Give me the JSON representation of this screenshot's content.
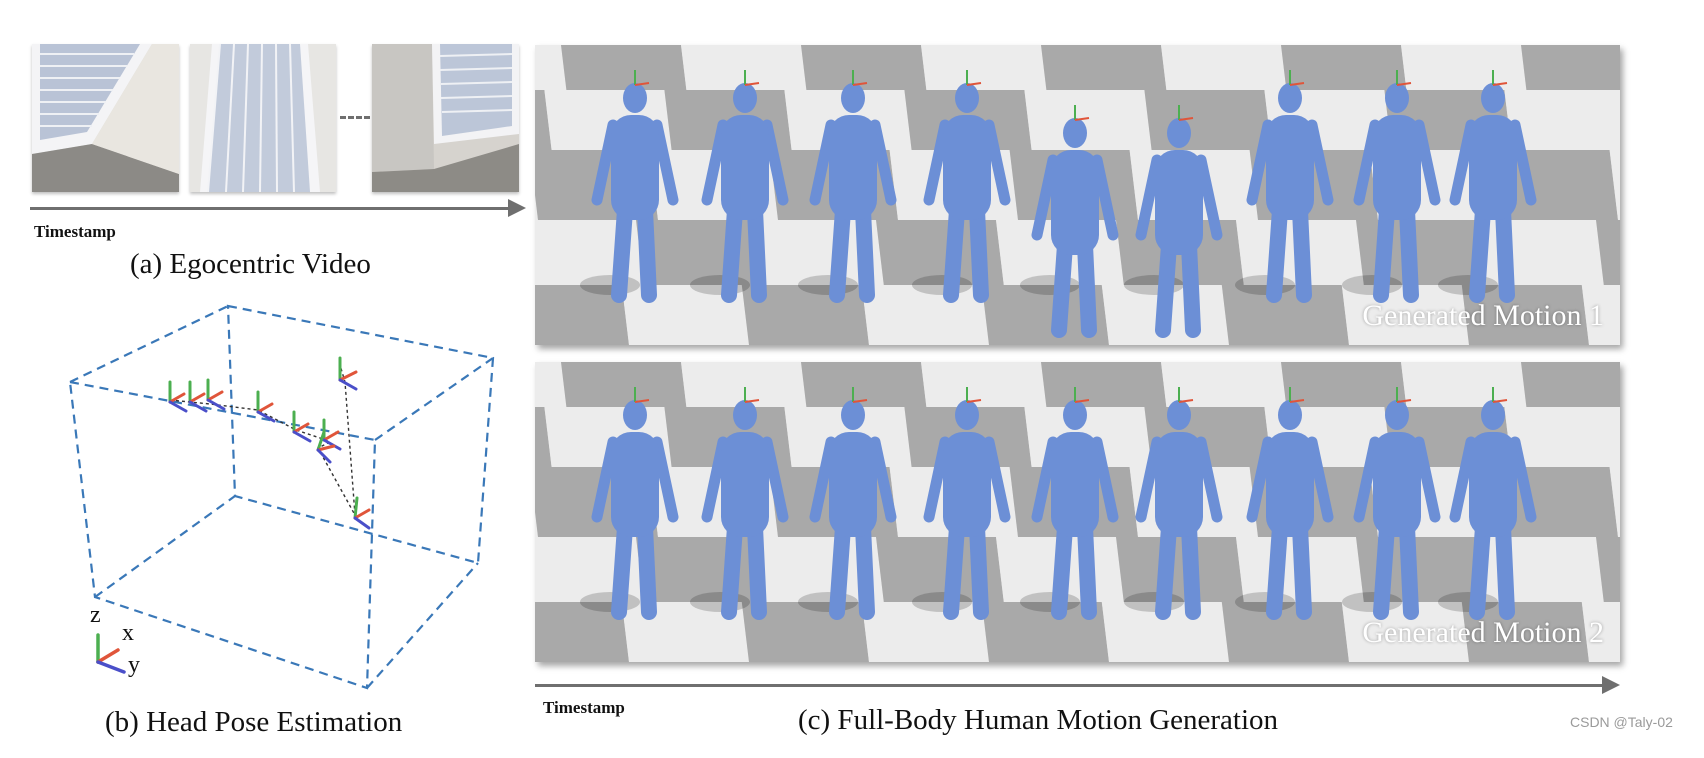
{
  "egocentric": {
    "timestamp_label": "Timestamp",
    "caption": "(a) Egocentric Video"
  },
  "head_pose": {
    "caption": "(b) Head Pose Estimation",
    "axis_labels": {
      "z": "z",
      "x": "x",
      "y": "y"
    },
    "colors": {
      "box": "#3a78b8",
      "axis_x": "#e0553a",
      "axis_y": "#4a4fc9",
      "axis_z": "#4caf50"
    }
  },
  "motion": {
    "panels": [
      {
        "label": "Generated Motion 1"
      },
      {
        "label": "Generated Motion 2"
      }
    ],
    "timestamp_label": "Timestamp",
    "caption": "(c) Full-Body Human Motion Generation",
    "body_color": "#6c8fd6"
  },
  "watermark": "CSDN @Taly-02"
}
